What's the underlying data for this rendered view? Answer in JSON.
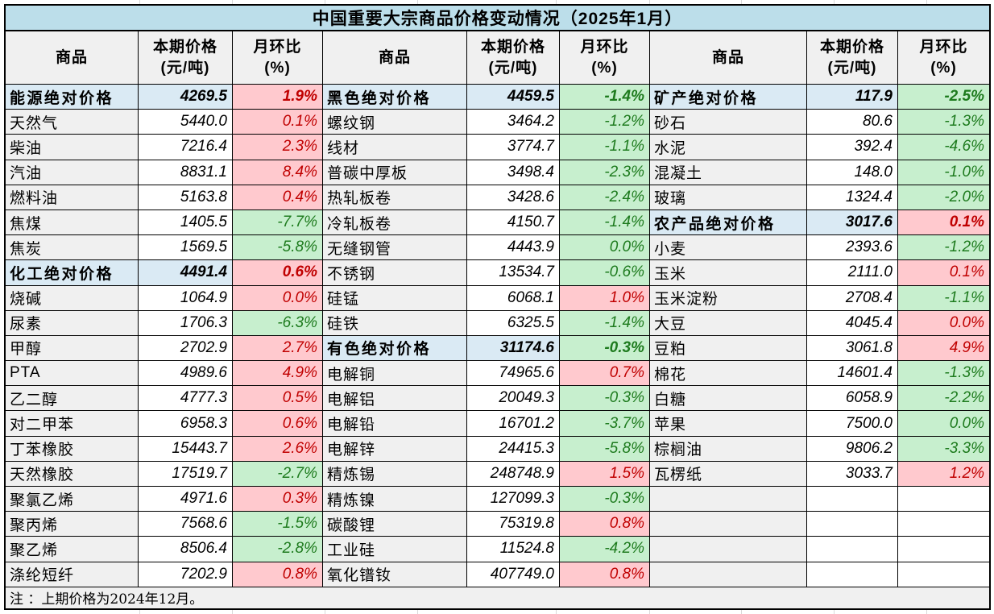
{
  "title": "中国重要大宗商品价格变动情况（2025年1月）",
  "note": "注 ：上期价格为2024年12月。",
  "column_headers": {
    "commodity": "商品",
    "price_line1": "本期价格",
    "price_line2": "(元/吨)",
    "mom_line1": "月环比",
    "mom_line2": "(%)"
  },
  "colors": {
    "title_bg": "#BCDEEA",
    "category_bg": "#DAEAF4",
    "header_bg": "#F0F0F0",
    "name_bg": "#F0F0F0",
    "note_bg": "#F0F0F0",
    "up_bg": "#FFC9CE",
    "up_text": "#C00000",
    "down_bg": "#C7EFCE",
    "down_text": "#1E7B1E",
    "border": "#000000"
  },
  "groups": [
    {
      "rows": [
        {
          "kind": "category",
          "name": "能源绝对价格",
          "price": "4269.5",
          "pct": "1.9%",
          "color": "red"
        },
        {
          "kind": "item",
          "name": "天然气",
          "price": "5440.0",
          "pct": "0.1%",
          "color": "red"
        },
        {
          "kind": "item",
          "name": "柴油",
          "price": "7216.4",
          "pct": "2.3%",
          "color": "red"
        },
        {
          "kind": "item",
          "name": "汽油",
          "price": "8831.1",
          "pct": "8.4%",
          "color": "red"
        },
        {
          "kind": "item",
          "name": "燃料油",
          "price": "5163.8",
          "pct": "0.4%",
          "color": "red"
        },
        {
          "kind": "item",
          "name": "焦煤",
          "price": "1405.5",
          "pct": "-7.7%",
          "color": "green"
        },
        {
          "kind": "item",
          "name": "焦炭",
          "price": "1569.5",
          "pct": "-5.8%",
          "color": "green"
        },
        {
          "kind": "category",
          "name": "化工绝对价格",
          "price": "4491.4",
          "pct": "0.6%",
          "color": "red"
        },
        {
          "kind": "item",
          "name": "烧碱",
          "price": "1064.9",
          "pct": "0.0%",
          "color": "red"
        },
        {
          "kind": "item",
          "name": "尿素",
          "price": "1706.3",
          "pct": "-6.3%",
          "color": "green"
        },
        {
          "kind": "item",
          "name": "甲醇",
          "price": "2702.9",
          "pct": "2.7%",
          "color": "red"
        },
        {
          "kind": "item",
          "name": "PTA",
          "price": "4989.6",
          "pct": "4.9%",
          "color": "red"
        },
        {
          "kind": "item",
          "name": "乙二醇",
          "price": "4777.3",
          "pct": "0.5%",
          "color": "red"
        },
        {
          "kind": "item",
          "name": "对二甲苯",
          "price": "6958.3",
          "pct": "0.6%",
          "color": "red"
        },
        {
          "kind": "item",
          "name": "丁苯橡胶",
          "price": "15443.7",
          "pct": "2.6%",
          "color": "red"
        },
        {
          "kind": "item",
          "name": "天然橡胶",
          "price": "17519.7",
          "pct": "-2.7%",
          "color": "green"
        },
        {
          "kind": "item",
          "name": "聚氯乙烯",
          "price": "4971.6",
          "pct": "0.3%",
          "color": "red"
        },
        {
          "kind": "item",
          "name": "聚丙烯",
          "price": "7568.6",
          "pct": "-1.5%",
          "color": "green"
        },
        {
          "kind": "item",
          "name": "聚乙烯",
          "price": "8506.4",
          "pct": "-2.8%",
          "color": "green"
        },
        {
          "kind": "item",
          "name": "涤纶短纤",
          "price": "7202.9",
          "pct": "0.8%",
          "color": "red"
        }
      ]
    },
    {
      "rows": [
        {
          "kind": "category",
          "name": "黑色绝对价格",
          "price": "4459.5",
          "pct": "-1.4%",
          "color": "green"
        },
        {
          "kind": "item",
          "name": "螺纹钢",
          "price": "3464.2",
          "pct": "-1.2%",
          "color": "green"
        },
        {
          "kind": "item",
          "name": "线材",
          "price": "3774.7",
          "pct": "-1.1%",
          "color": "green"
        },
        {
          "kind": "item",
          "name": "普碳中厚板",
          "price": "3498.4",
          "pct": "-2.3%",
          "color": "green"
        },
        {
          "kind": "item",
          "name": "热轧板卷",
          "price": "3428.6",
          "pct": "-2.4%",
          "color": "green"
        },
        {
          "kind": "item",
          "name": "冷轧板卷",
          "price": "4150.7",
          "pct": "-1.4%",
          "color": "green"
        },
        {
          "kind": "item",
          "name": "无缝钢管",
          "price": "4443.9",
          "pct": "0.0%",
          "color": "green"
        },
        {
          "kind": "item",
          "name": "不锈钢",
          "price": "13534.7",
          "pct": "-0.6%",
          "color": "green"
        },
        {
          "kind": "item",
          "name": "硅锰",
          "price": "6068.1",
          "pct": "1.0%",
          "color": "red"
        },
        {
          "kind": "item",
          "name": "硅铁",
          "price": "6325.5",
          "pct": "-1.4%",
          "color": "green"
        },
        {
          "kind": "category",
          "name": "有色绝对价格",
          "price": "31174.6",
          "pct": "-0.3%",
          "color": "green"
        },
        {
          "kind": "item",
          "name": "电解铜",
          "price": "74965.6",
          "pct": "0.7%",
          "color": "red"
        },
        {
          "kind": "item",
          "name": "电解铝",
          "price": "20049.3",
          "pct": "-0.3%",
          "color": "green"
        },
        {
          "kind": "item",
          "name": "电解铅",
          "price": "16701.2",
          "pct": "-3.7%",
          "color": "green"
        },
        {
          "kind": "item",
          "name": "电解锌",
          "price": "24415.3",
          "pct": "-5.8%",
          "color": "green"
        },
        {
          "kind": "item",
          "name": "精炼锡",
          "price": "248748.9",
          "pct": "1.5%",
          "color": "red"
        },
        {
          "kind": "item",
          "name": "精炼镍",
          "price": "127099.3",
          "pct": "-0.3%",
          "color": "green"
        },
        {
          "kind": "item",
          "name": "碳酸锂",
          "price": "75319.8",
          "pct": "0.8%",
          "color": "red"
        },
        {
          "kind": "item",
          "name": "工业硅",
          "price": "11524.8",
          "pct": "-4.2%",
          "color": "green"
        },
        {
          "kind": "item",
          "name": "氧化镨钕",
          "price": "407749.0",
          "pct": "0.8%",
          "color": "red"
        }
      ]
    },
    {
      "rows": [
        {
          "kind": "category",
          "name": "矿产绝对价格",
          "price": "117.9",
          "pct": "-2.5%",
          "color": "green"
        },
        {
          "kind": "item",
          "name": "砂石",
          "price": "80.6",
          "pct": "-1.3%",
          "color": "green"
        },
        {
          "kind": "item",
          "name": "水泥",
          "price": "392.4",
          "pct": "-4.6%",
          "color": "green"
        },
        {
          "kind": "item",
          "name": "混凝土",
          "price": "148.0",
          "pct": "-1.0%",
          "color": "green"
        },
        {
          "kind": "item",
          "name": "玻璃",
          "price": "1324.4",
          "pct": "-2.0%",
          "color": "green"
        },
        {
          "kind": "category",
          "name": "农产品绝对价格",
          "price": "3017.6",
          "pct": "0.1%",
          "color": "red"
        },
        {
          "kind": "item",
          "name": "小麦",
          "price": "2393.6",
          "pct": "-1.2%",
          "color": "green"
        },
        {
          "kind": "item",
          "name": "玉米",
          "price": "2111.0",
          "pct": "0.1%",
          "color": "red"
        },
        {
          "kind": "item",
          "name": "玉米淀粉",
          "price": "2708.4",
          "pct": "-1.1%",
          "color": "green"
        },
        {
          "kind": "item",
          "name": "大豆",
          "price": "4045.4",
          "pct": "0.0%",
          "color": "red"
        },
        {
          "kind": "item",
          "name": "豆粕",
          "price": "3061.8",
          "pct": "4.9%",
          "color": "red"
        },
        {
          "kind": "item",
          "name": "棉花",
          "price": "14601.4",
          "pct": "-1.3%",
          "color": "green"
        },
        {
          "kind": "item",
          "name": "白糖",
          "price": "6058.9",
          "pct": "-2.2%",
          "color": "green"
        },
        {
          "kind": "item",
          "name": "苹果",
          "price": "7500.0",
          "pct": "0.0%",
          "color": "green"
        },
        {
          "kind": "item",
          "name": "棕榈油",
          "price": "9806.2",
          "pct": "-3.3%",
          "color": "green"
        },
        {
          "kind": "item",
          "name": "瓦楞纸",
          "price": "3033.7",
          "pct": "1.2%",
          "color": "red"
        },
        {
          "kind": "empty",
          "name": "",
          "price": "",
          "pct": "",
          "color": "none"
        },
        {
          "kind": "empty",
          "name": "",
          "price": "",
          "pct": "",
          "color": "none"
        },
        {
          "kind": "empty",
          "name": "",
          "price": "",
          "pct": "",
          "color": "none"
        },
        {
          "kind": "empty",
          "name": "",
          "price": "",
          "pct": "",
          "color": "none"
        }
      ]
    }
  ]
}
